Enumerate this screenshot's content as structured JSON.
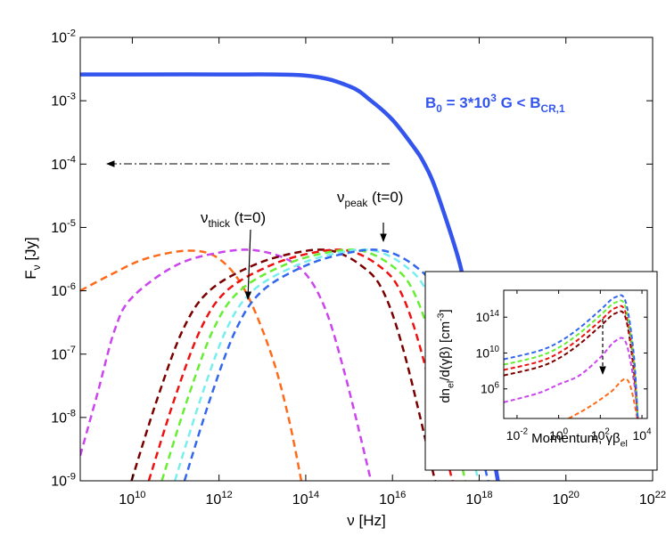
{
  "chart_data": [
    {
      "type": "line",
      "xlog": true,
      "ylog": true,
      "xlim": [
        630000000.0,
        1e+22
      ],
      "ylim": [
        1e-09,
        0.01
      ],
      "xticks": [
        {
          "value": 10000000000.0,
          "label": "10^10"
        },
        {
          "value": 1000000000000.0,
          "label": "10^12"
        },
        {
          "value": 100000000000000.0,
          "label": "10^14"
        },
        {
          "value": 1e+16,
          "label": "10^16"
        },
        {
          "value": 1e+18,
          "label": "10^18"
        },
        {
          "value": 1e+20,
          "label": "10^20"
        },
        {
          "value": 1e+22,
          "label": "10^22"
        }
      ],
      "yticks": [
        {
          "value": 1e-09,
          "label": "10^-9"
        },
        {
          "value": 1e-08,
          "label": "10^-8"
        },
        {
          "value": 1e-07,
          "label": "10^-7"
        },
        {
          "value": 1e-06,
          "label": "10^-6"
        },
        {
          "value": 1e-05,
          "label": "10^-5"
        },
        {
          "value": 0.0001,
          "label": "10^-4"
        },
        {
          "value": 0.001,
          "label": "10^-3"
        },
        {
          "value": 0.01,
          "label": "10^-2"
        }
      ],
      "xlabel": [
        {
          "text": "ν [Hz]"
        }
      ],
      "ylabel": [
        {
          "text": "F"
        },
        {
          "text": "ν",
          "shift": "sub"
        },
        {
          "text": " [Jy]"
        }
      ],
      "annotations": [
        [
          {
            "text": "B"
          },
          {
            "text": "0",
            "shift": "sub"
          },
          {
            "text": " = 3*10"
          },
          {
            "text": "3",
            "shift": "sup"
          },
          {
            "text": " G < B"
          },
          {
            "text": "CR,1",
            "shift": "sub"
          }
        ],
        [
          {
            "text": "ν"
          },
          {
            "text": "thick",
            "shift": "sub"
          },
          {
            "text": " (t=0)"
          }
        ],
        [
          {
            "text": "ν"
          },
          {
            "text": "peak",
            "shift": "sub"
          },
          {
            "text": " (t=0)"
          }
        ]
      ],
      "series": [
        {
          "color": "#3355ee",
          "dash": false,
          "x": [
            630000000.0,
            10000000000.0,
            1000000000000.0,
            100000000000000.0,
            1000000000000000.0,
            3200000000000000.0,
            1e+16,
            3.2e+16,
            5.5e+16,
            1e+17,
            3.2e+17,
            4.7e+17,
            1e+18,
            2.7e+18
          ],
          "values": [
            0.0026,
            0.0026,
            0.0026,
            0.0025,
            0.0017,
            0.001,
            0.0005,
            0.00018,
            0.0001,
            4e-05,
            3.5e-06,
            1e-06,
            5e-08,
            1e-09
          ]
        },
        {
          "color": "#ff6a1a",
          "dash": true,
          "x": [
            630000000.0,
            3200000000.0,
            20000000000.0,
            200000000000.0,
            1000000000000.0,
            4000000000000.0,
            16000000000000.0,
            40000000000000.0,
            79000000000000.0
          ],
          "values": [
            1e-06,
            1.8e-06,
            3.2e-06,
            4.3e-06,
            3.2e-06,
            1e-06,
            1e-07,
            1e-08,
            1e-09
          ]
        },
        {
          "color": "#cc44ee",
          "dash": true,
          "x": [
            630000000.0,
            1600000000.0,
            4000000000.0,
            10000000000.0,
            100000000000.0,
            1000000000000.0,
            7900000000000.0,
            63000000000000.0,
            250000000000000.0,
            790000000000000.0,
            3200000000000000.0
          ],
          "values": [
            2.5e-09,
            2.5e-08,
            2.5e-07,
            7.9e-07,
            2.5e-06,
            4e-06,
            4.3e-06,
            2.5e-06,
            6.3e-07,
            5e-08,
            1e-09
          ]
        },
        {
          "color": "#7a0000",
          "dash": true,
          "x": [
            9600000000.0,
            38000000000.0,
            150000000000.0,
            600000000000.0,
            6000000000000.0,
            60000000000000.0,
            380000000000000.0,
            1900000000000000.0,
            6000000000000000.0,
            1.9e+16,
            9.6e+16
          ],
          "values": [
            1e-09,
            2e-08,
            2.5e-07,
            1e-06,
            2.5e-06,
            4e-06,
            4.3e-06,
            2.5e-06,
            1e-06,
            1e-07,
            1e-09
          ]
        },
        {
          "color": "#ee1111",
          "dash": true,
          "x": [
            24000000000.0,
            95000000000.0,
            380000000000.0,
            1500000000000.0,
            15000000000000.0,
            150000000000000.0,
            950000000000000.0,
            4800000000000000.0,
            1.5e+16,
            4.8e+16,
            2.4e+17
          ],
          "values": [
            1e-09,
            2e-08,
            2.5e-07,
            1e-06,
            2.5e-06,
            4e-06,
            4.3e-06,
            2.5e-06,
            1e-06,
            1e-07,
            1e-09
          ]
        },
        {
          "color": "#66ee33",
          "dash": true,
          "x": [
            48000000000.0,
            190000000000.0,
            750000000000.0,
            3000000000000.0,
            30000000000000.0,
            300000000000000.0,
            1900000000000000.0,
            9600000000000000.0,
            3e+16,
            9.6e+16,
            4.8e+17
          ],
          "values": [
            1e-09,
            2e-08,
            2.5e-07,
            1e-06,
            2.5e-06,
            4e-06,
            4.3e-06,
            2.5e-06,
            1e-06,
            1e-07,
            1e-09
          ]
        },
        {
          "color": "#77eeee",
          "dash": true,
          "x": [
            96000000000.0,
            380000000000.0,
            1500000000000.0,
            6000000000000.0,
            60000000000000.0,
            600000000000000.0,
            3800000000000000.0,
            1.9e+16,
            6e+16,
            1.9e+17,
            9.6e+17
          ],
          "values": [
            1e-09,
            2e-08,
            2.5e-07,
            1e-06,
            2.5e-06,
            4e-06,
            4.3e-06,
            2.5e-06,
            1e-06,
            1e-07,
            1e-09
          ]
        },
        {
          "color": "#3366ee",
          "dash": true,
          "x": [
            160000000000.0,
            630000000000.0,
            2500000000000.0,
            10000000000000.0,
            100000000000000.0,
            1000000000000000.0,
            6300000000000000.0,
            3.2e+16,
            1e+17,
            3.2e+17,
            1.6e+18
          ],
          "values": [
            1e-09,
            2e-08,
            2.5e-07,
            1e-06,
            2.5e-06,
            4e-06,
            4.3e-06,
            2.5e-06,
            1e-06,
            1e-07,
            1e-09
          ]
        }
      ]
    },
    {
      "type": "line",
      "xlog": true,
      "ylog": true,
      "xlim": [
        0.0023,
        18000.0
      ],
      "ylim": [
        500.0,
        1e+17
      ],
      "xticks": [
        {
          "value": 0.01,
          "label": "10^-2"
        },
        {
          "value": 1,
          "label": "10^0"
        },
        {
          "value": 100,
          "label": "10^2"
        },
        {
          "value": 10000.0,
          "label": "10^4"
        }
      ],
      "yticks": [
        {
          "value": 1000000.0,
          "label": "10^6"
        },
        {
          "value": 10000000000.0,
          "label": "10^10"
        },
        {
          "value": 100000000000000.0,
          "label": "10^14"
        }
      ],
      "xlabel": [
        {
          "text": "Momentum, γβ"
        },
        {
          "text": "el",
          "shift": "sub"
        }
      ],
      "ylabel": [
        {
          "text": "dn"
        },
        {
          "text": "el",
          "shift": "sub"
        },
        {
          "text": "/d(γβ) [cm"
        },
        {
          "text": "-3",
          "shift": "sup"
        },
        {
          "text": "]"
        }
      ],
      "series": [
        {
          "color": "#cc44ee",
          "dash": true,
          "x": [
            0.0023,
            0.1,
            1,
            10,
            100,
            500,
            1600,
            4000,
            6300
          ],
          "values": [
            32000.0,
            320000.0,
            3200000.0,
            32000000.0,
            3200000000.0,
            200000000000.0,
            200000000000.0,
            10000000.0,
            500.0
          ]
        },
        {
          "color": "#ff6a1a",
          "dash": true,
          "x": [
            3,
            30,
            300,
            2000,
            6000
          ],
          "values": [
            500.0,
            10000.0,
            400000.0,
            10000000.0,
            500.0
          ]
        },
        {
          "color": "#7a0000",
          "dash": true,
          "x": [
            0.0023,
            0.1,
            1,
            10,
            100,
            500,
            1600,
            4000,
            6300
          ],
          "values": [
            32000000.0,
            250000000.0,
            2500000000.0,
            100000000000.0,
            10000000000000.0,
            250000000000000.0,
            100000000000000.0,
            160000000.0,
            500.0
          ]
        },
        {
          "color": "#ee1111",
          "dash": true,
          "x": [
            0.0023,
            0.1,
            1,
            10,
            100,
            500,
            1600,
            4000,
            6300
          ],
          "values": [
            130000000.0,
            1000000000.0,
            10000000000.0,
            400000000000.0,
            40000000000000.0,
            1000000000000000.0,
            400000000000000.0,
            630000000.0,
            500.0
          ]
        },
        {
          "color": "#66ee33",
          "dash": true,
          "x": [
            0.0023,
            0.1,
            1,
            10,
            100,
            500,
            1600,
            4000,
            6300
          ],
          "values": [
            500000000.0,
            4000000000.0,
            40000000000.0,
            1600000000000.0,
            160000000000000.0,
            4000000000000000.0,
            1600000000000000.0,
            2500000000.0,
            500.0
          ]
        },
        {
          "color": "#3366ee",
          "dash": true,
          "x": [
            0.0023,
            0.1,
            1,
            10,
            100,
            500,
            1600,
            4000,
            6300
          ],
          "values": [
            2000000000.0,
            16000000000.0,
            160000000000.0,
            6300000000000.0,
            630000000000000.0,
            1.6e+16,
            6300000000000000.0,
            10000000000.0,
            500.0
          ]
        }
      ]
    }
  ]
}
